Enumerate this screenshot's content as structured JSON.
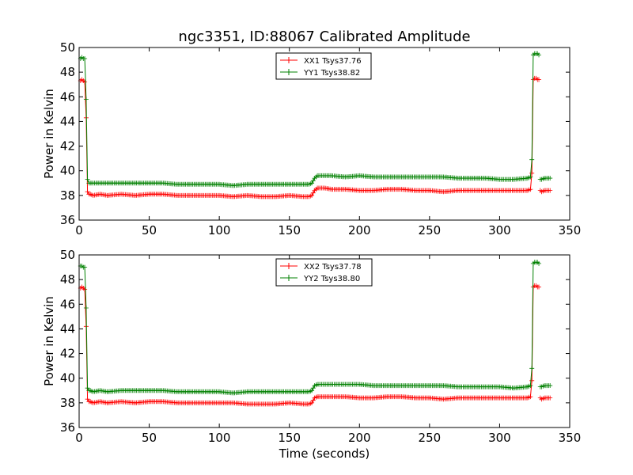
{
  "figure": {
    "title": "ngc3351, ID:88067 Calibrated Amplitude",
    "xlabel": "Time (seconds)"
  },
  "chart_data": [
    {
      "type": "line",
      "title": "ngc3351, ID:88067 Calibrated Amplitude",
      "xlabel": "",
      "ylabel": "Power in Kelvin",
      "xlim": [
        0,
        350
      ],
      "ylim": [
        36,
        50
      ],
      "xticks": [
        0,
        50,
        100,
        150,
        200,
        250,
        300,
        350
      ],
      "yticks": [
        36,
        38,
        40,
        42,
        44,
        46,
        48,
        50
      ],
      "grid": false,
      "legend_position": "top-center",
      "marker": "plus",
      "series": [
        {
          "name": "XX1 Tsys37.76",
          "color": "#ff0000",
          "segments": [
            [
              [
                1,
                47.3
              ],
              [
                2,
                47.4
              ],
              [
                3,
                47.3
              ],
              [
                4,
                47.2
              ],
              [
                5,
                44.3
              ],
              [
                6,
                38.3
              ],
              [
                7,
                38.1
              ],
              [
                8,
                38.1
              ],
              [
                10,
                38.0
              ],
              [
                15,
                38.1
              ],
              [
                20,
                38.0
              ],
              [
                30,
                38.1
              ],
              [
                40,
                38.0
              ],
              [
                50,
                38.1
              ],
              [
                60,
                38.1
              ],
              [
                70,
                38.0
              ],
              [
                80,
                38.0
              ],
              [
                90,
                38.0
              ],
              [
                100,
                38.0
              ],
              [
                110,
                37.9
              ],
              [
                120,
                38.0
              ],
              [
                130,
                37.9
              ],
              [
                140,
                37.9
              ],
              [
                150,
                38.0
              ],
              [
                160,
                37.9
              ],
              [
                164,
                37.9
              ],
              [
                166,
                38.0
              ],
              [
                168,
                38.4
              ],
              [
                170,
                38.6
              ],
              [
                175,
                38.6
              ],
              [
                180,
                38.5
              ],
              [
                190,
                38.5
              ],
              [
                200,
                38.4
              ],
              [
                210,
                38.4
              ],
              [
                220,
                38.5
              ],
              [
                230,
                38.5
              ],
              [
                240,
                38.4
              ],
              [
                250,
                38.4
              ],
              [
                260,
                38.3
              ],
              [
                270,
                38.4
              ],
              [
                280,
                38.4
              ],
              [
                290,
                38.4
              ],
              [
                300,
                38.4
              ],
              [
                310,
                38.4
              ],
              [
                320,
                38.4
              ],
              [
                322,
                38.5
              ],
              [
                323,
                39.8
              ],
              [
                324,
                47.4
              ],
              [
                325,
                47.5
              ],
              [
                326,
                47.5
              ],
              [
                327,
                47.4
              ],
              [
                328,
                47.4
              ]
            ],
            [
              [
                329,
                38.4
              ],
              [
                330,
                38.3
              ],
              [
                332,
                38.4
              ],
              [
                334,
                38.4
              ],
              [
                336,
                38.4
              ]
            ]
          ]
        },
        {
          "name": "YY1 Tsys38.82",
          "color": "#008000",
          "segments": [
            [
              [
                1,
                49.1
              ],
              [
                2,
                49.2
              ],
              [
                3,
                49.1
              ],
              [
                4,
                49.1
              ],
              [
                5,
                45.8
              ],
              [
                6,
                39.3
              ],
              [
                7,
                39.0
              ],
              [
                8,
                39.0
              ],
              [
                10,
                39.0
              ],
              [
                15,
                39.0
              ],
              [
                20,
                39.0
              ],
              [
                30,
                39.0
              ],
              [
                40,
                39.0
              ],
              [
                50,
                39.0
              ],
              [
                60,
                39.0
              ],
              [
                70,
                38.9
              ],
              [
                80,
                38.9
              ],
              [
                90,
                38.9
              ],
              [
                100,
                38.9
              ],
              [
                110,
                38.8
              ],
              [
                120,
                38.9
              ],
              [
                130,
                38.9
              ],
              [
                140,
                38.9
              ],
              [
                150,
                38.9
              ],
              [
                160,
                38.9
              ],
              [
                164,
                38.9
              ],
              [
                166,
                39.0
              ],
              [
                168,
                39.4
              ],
              [
                170,
                39.6
              ],
              [
                175,
                39.6
              ],
              [
                180,
                39.6
              ],
              [
                190,
                39.5
              ],
              [
                200,
                39.6
              ],
              [
                210,
                39.5
              ],
              [
                220,
                39.5
              ],
              [
                230,
                39.5
              ],
              [
                240,
                39.5
              ],
              [
                250,
                39.5
              ],
              [
                260,
                39.5
              ],
              [
                270,
                39.4
              ],
              [
                280,
                39.4
              ],
              [
                290,
                39.4
              ],
              [
                300,
                39.3
              ],
              [
                310,
                39.3
              ],
              [
                320,
                39.4
              ],
              [
                322,
                39.5
              ],
              [
                323,
                40.9
              ],
              [
                324,
                49.4
              ],
              [
                325,
                49.5
              ],
              [
                326,
                49.5
              ],
              [
                327,
                49.5
              ],
              [
                328,
                49.4
              ]
            ],
            [
              [
                329,
                39.3
              ],
              [
                330,
                39.3
              ],
              [
                332,
                39.4
              ],
              [
                334,
                39.4
              ],
              [
                336,
                39.4
              ]
            ]
          ]
        }
      ]
    },
    {
      "type": "line",
      "title": "",
      "xlabel": "Time (seconds)",
      "ylabel": "Power in Kelvin",
      "xlim": [
        0,
        350
      ],
      "ylim": [
        36,
        50
      ],
      "xticks": [
        0,
        50,
        100,
        150,
        200,
        250,
        300,
        350
      ],
      "yticks": [
        36,
        38,
        40,
        42,
        44,
        46,
        48,
        50
      ],
      "grid": false,
      "legend_position": "top-center",
      "marker": "plus",
      "series": [
        {
          "name": "XX2 Tsys37.78",
          "color": "#ff0000",
          "segments": [
            [
              [
                1,
                47.3
              ],
              [
                2,
                47.4
              ],
              [
                3,
                47.3
              ],
              [
                4,
                47.2
              ],
              [
                5,
                44.2
              ],
              [
                6,
                38.3
              ],
              [
                7,
                38.1
              ],
              [
                8,
                38.1
              ],
              [
                10,
                38.0
              ],
              [
                15,
                38.1
              ],
              [
                20,
                38.0
              ],
              [
                30,
                38.1
              ],
              [
                40,
                38.0
              ],
              [
                50,
                38.1
              ],
              [
                60,
                38.1
              ],
              [
                70,
                38.0
              ],
              [
                80,
                38.0
              ],
              [
                90,
                38.0
              ],
              [
                100,
                38.0
              ],
              [
                110,
                38.0
              ],
              [
                120,
                37.9
              ],
              [
                130,
                37.9
              ],
              [
                140,
                37.9
              ],
              [
                150,
                38.0
              ],
              [
                160,
                37.9
              ],
              [
                164,
                37.9
              ],
              [
                166,
                38.0
              ],
              [
                168,
                38.4
              ],
              [
                170,
                38.5
              ],
              [
                175,
                38.5
              ],
              [
                180,
                38.5
              ],
              [
                190,
                38.5
              ],
              [
                200,
                38.4
              ],
              [
                210,
                38.4
              ],
              [
                220,
                38.5
              ],
              [
                230,
                38.5
              ],
              [
                240,
                38.4
              ],
              [
                250,
                38.4
              ],
              [
                260,
                38.3
              ],
              [
                270,
                38.4
              ],
              [
                280,
                38.4
              ],
              [
                290,
                38.4
              ],
              [
                300,
                38.4
              ],
              [
                310,
                38.4
              ],
              [
                320,
                38.4
              ],
              [
                322,
                38.5
              ],
              [
                323,
                39.8
              ],
              [
                324,
                47.4
              ],
              [
                325,
                47.5
              ],
              [
                326,
                47.5
              ],
              [
                327,
                47.4
              ],
              [
                328,
                47.4
              ]
            ],
            [
              [
                329,
                38.4
              ],
              [
                330,
                38.3
              ],
              [
                332,
                38.4
              ],
              [
                334,
                38.4
              ],
              [
                336,
                38.4
              ]
            ]
          ]
        },
        {
          "name": "YY2 Tsys38.80",
          "color": "#008000",
          "segments": [
            [
              [
                1,
                49.1
              ],
              [
                2,
                49.1
              ],
              [
                3,
                49.0
              ],
              [
                4,
                49.0
              ],
              [
                5,
                45.7
              ],
              [
                6,
                39.2
              ],
              [
                7,
                39.0
              ],
              [
                8,
                39.0
              ],
              [
                10,
                38.9
              ],
              [
                15,
                39.0
              ],
              [
                20,
                38.9
              ],
              [
                30,
                39.0
              ],
              [
                40,
                39.0
              ],
              [
                50,
                39.0
              ],
              [
                60,
                39.0
              ],
              [
                70,
                38.9
              ],
              [
                80,
                38.9
              ],
              [
                90,
                38.9
              ],
              [
                100,
                38.9
              ],
              [
                110,
                38.8
              ],
              [
                120,
                38.9
              ],
              [
                130,
                38.9
              ],
              [
                140,
                38.9
              ],
              [
                150,
                38.9
              ],
              [
                160,
                38.9
              ],
              [
                164,
                38.9
              ],
              [
                166,
                39.0
              ],
              [
                168,
                39.4
              ],
              [
                170,
                39.5
              ],
              [
                175,
                39.5
              ],
              [
                180,
                39.5
              ],
              [
                190,
                39.5
              ],
              [
                200,
                39.5
              ],
              [
                210,
                39.4
              ],
              [
                220,
                39.4
              ],
              [
                230,
                39.4
              ],
              [
                240,
                39.4
              ],
              [
                250,
                39.4
              ],
              [
                260,
                39.4
              ],
              [
                270,
                39.3
              ],
              [
                280,
                39.3
              ],
              [
                290,
                39.3
              ],
              [
                300,
                39.3
              ],
              [
                310,
                39.2
              ],
              [
                320,
                39.3
              ],
              [
                322,
                39.4
              ],
              [
                323,
                40.8
              ],
              [
                324,
                49.3
              ],
              [
                325,
                49.4
              ],
              [
                326,
                49.4
              ],
              [
                327,
                49.4
              ],
              [
                328,
                49.3
              ]
            ],
            [
              [
                329,
                39.3
              ],
              [
                330,
                39.3
              ],
              [
                332,
                39.4
              ],
              [
                334,
                39.4
              ],
              [
                336,
                39.4
              ]
            ]
          ]
        }
      ]
    }
  ]
}
